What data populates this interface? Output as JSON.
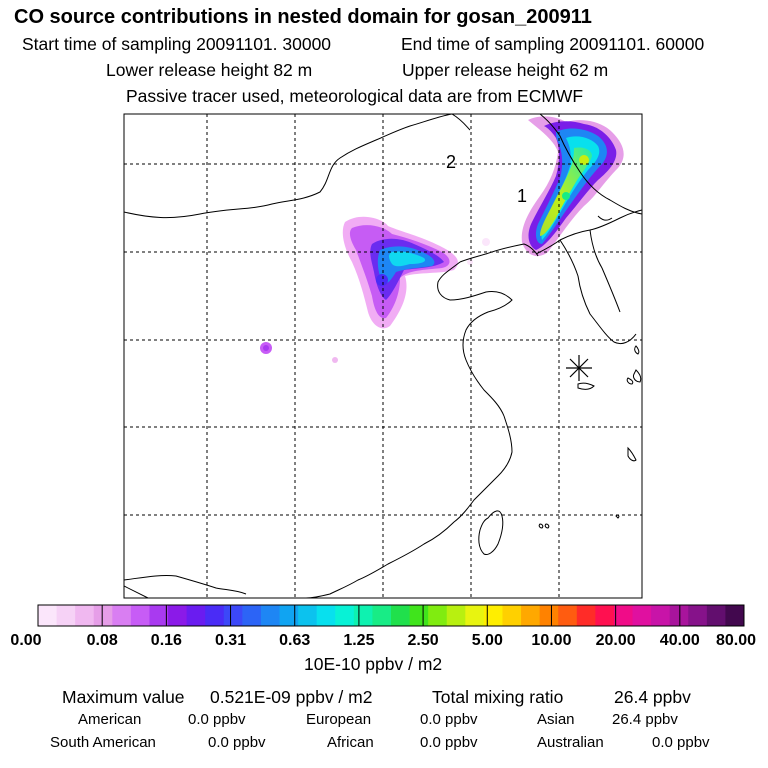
{
  "header": {
    "title": "CO  source contributions in nested domain for gosan_200911",
    "start_time": "Start time of sampling 20091101. 30000",
    "end_time": "End time of sampling 20091101. 60000",
    "lower_release": "Lower release height   82 m",
    "upper_release": "Upper release height   62 m",
    "tracer_note": "Passive tracer used, meteorological data are from ECMWF"
  },
  "map": {
    "markers": [
      {
        "label": "1",
        "type": "numbered-site"
      },
      {
        "label": "2",
        "type": "numbered-site"
      }
    ],
    "receptor_symbol": "star-receptor"
  },
  "colorbar": {
    "colors": [
      "#fbe6fb",
      "#f6d2f6",
      "#f0b8f0",
      "#e69ee8",
      "#d97ef2",
      "#c75cf6",
      "#a93af0",
      "#8b1ae8",
      "#6a1cf0",
      "#4a2cf6",
      "#3c48f8",
      "#2c64f6",
      "#1e86f4",
      "#10a4f2",
      "#0cc2ee",
      "#08e0ee",
      "#08f2d6",
      "#0ef2b0",
      "#18ec86",
      "#20e04c",
      "#40e41c",
      "#80ec10",
      "#b8f010",
      "#e8f410",
      "#ffee00",
      "#ffd000",
      "#ffa800",
      "#ff8200",
      "#ff5c10",
      "#ff2c28",
      "#ff1050",
      "#f00c88",
      "#e010a0",
      "#c814a8",
      "#a8149c",
      "#86128a",
      "#620e6e",
      "#42084e"
    ],
    "labels": [
      "0.00",
      "0.08",
      "0.16",
      "0.31",
      "0.63",
      "1.25",
      "2.50",
      "5.00",
      "10.00",
      "20.00",
      "40.00",
      "80.00"
    ],
    "unit": "10E-10 ppbv / m2"
  },
  "stats": {
    "max_value_label": "Maximum value",
    "max_value": "0.521E-09 ppbv / m2",
    "total_label": "Total mixing ratio",
    "total_value": "26.4 ppbv",
    "regions": [
      {
        "name": "American",
        "value": "0.0 ppbv"
      },
      {
        "name": "European",
        "value": "0.0 ppbv"
      },
      {
        "name": "Asian",
        "value": "26.4 ppbv"
      },
      {
        "name": "South American",
        "value": "0.0 ppbv"
      },
      {
        "name": "African",
        "value": "0.0 ppbv"
      },
      {
        "name": "Australian",
        "value": "0.0 ppbv"
      }
    ]
  }
}
